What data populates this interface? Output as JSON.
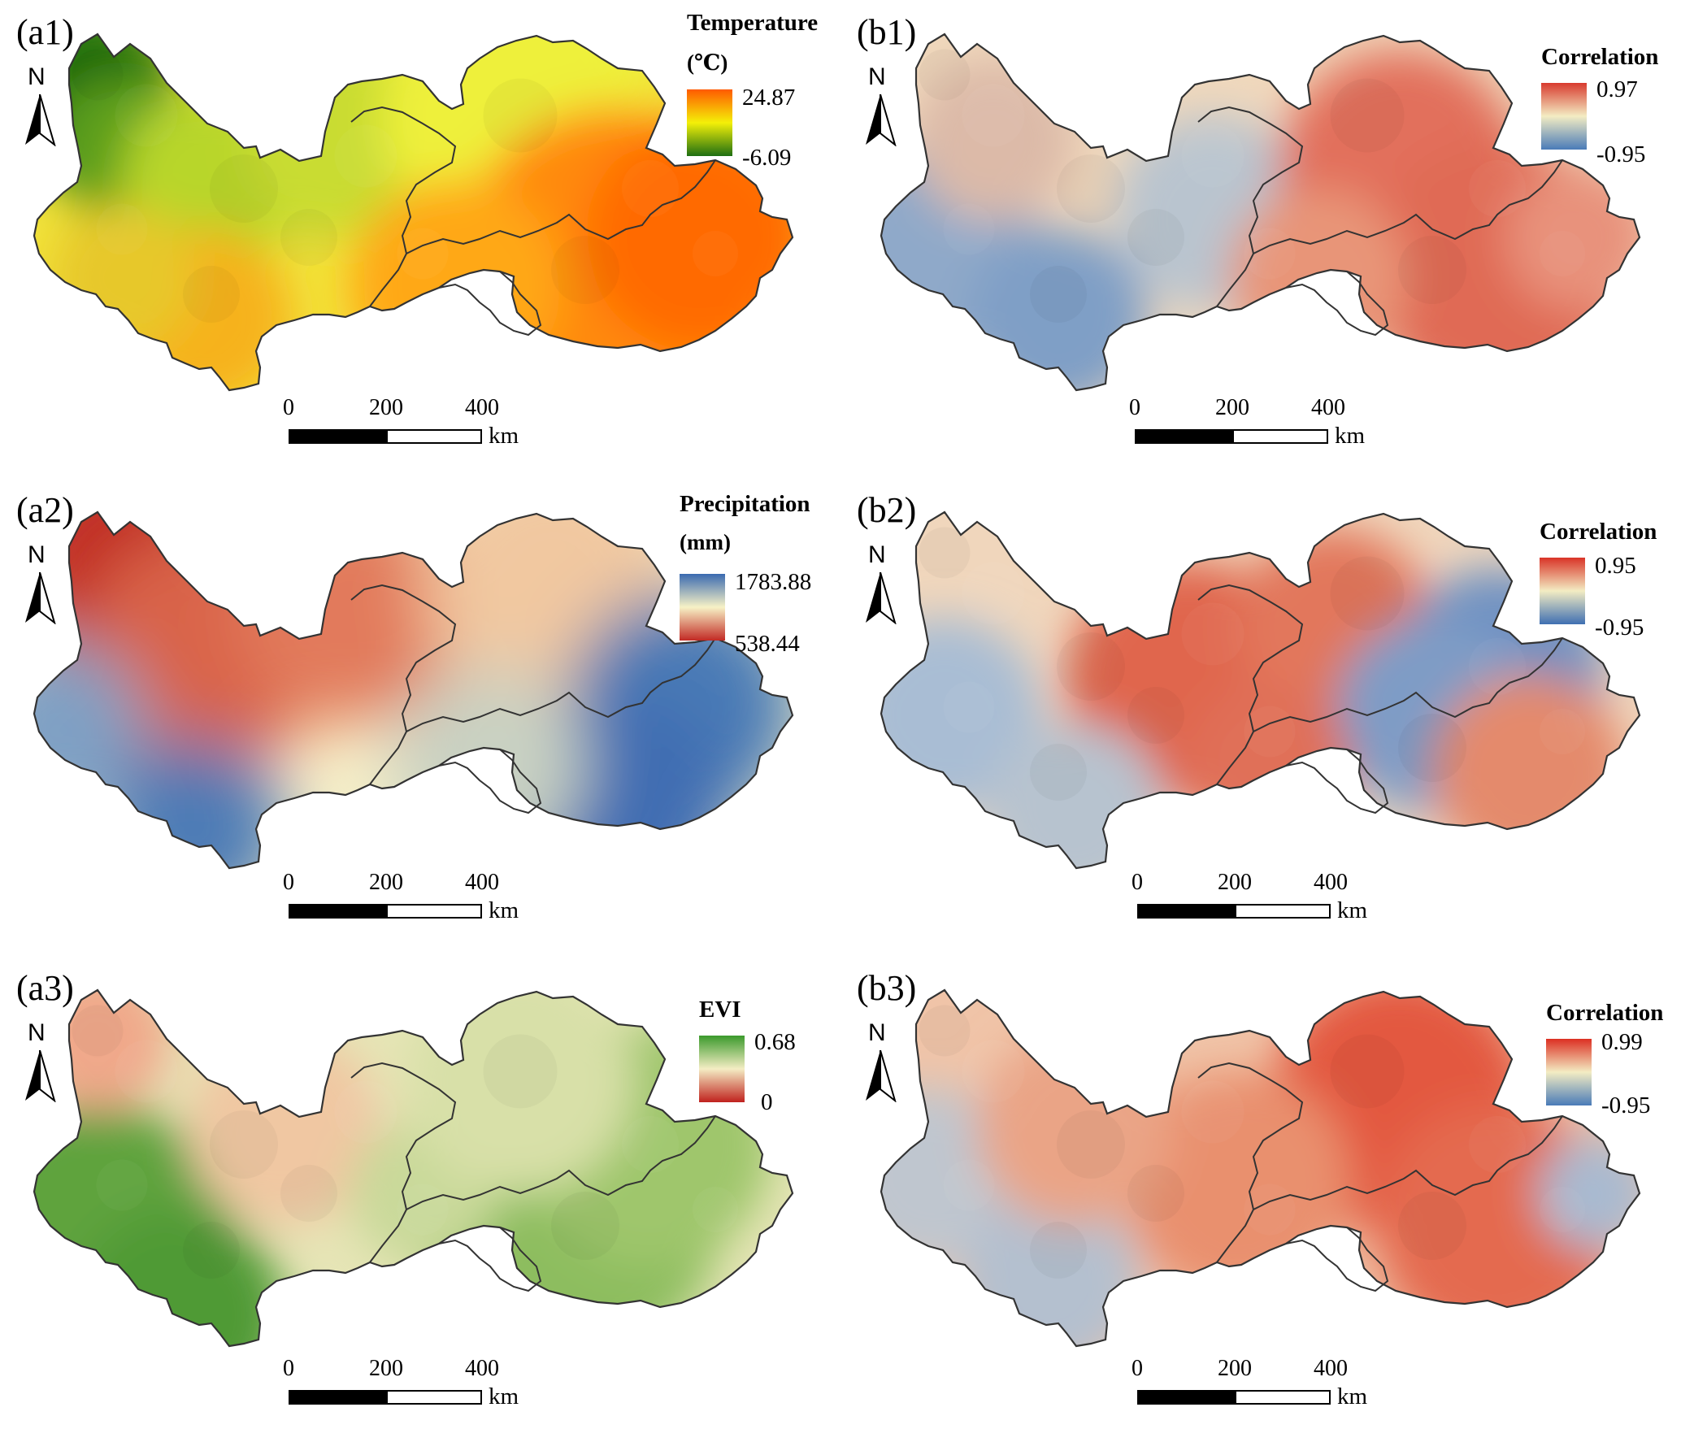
{
  "panels": [
    {
      "id": "a1",
      "label": "(a1)",
      "legend_title": "Temperature",
      "legend_unit": "(℃)",
      "max": "24.87",
      "min": "-6.09",
      "scheme": "temperature",
      "colors": [
        "#1e6e12",
        "#f4f008",
        "#ff5a00"
      ]
    },
    {
      "id": "b1",
      "label": "(b1)",
      "legend_title": "Correlation",
      "legend_unit": "",
      "max": "0.97",
      "min": "-0.95",
      "scheme": "corr1",
      "colors": [
        "#4a7bb8",
        "#f3ecc3",
        "#d83a2e"
      ]
    },
    {
      "id": "a2",
      "label": "(a2)",
      "legend_title": "Precipitation",
      "legend_unit": "(mm)",
      "max": "1783.88",
      "min": "538.44",
      "scheme": "precip",
      "colors": [
        "#c22a24",
        "#f7f2c6",
        "#3a6ab0"
      ]
    },
    {
      "id": "b2",
      "label": "(b2)",
      "legend_title": "Correlation",
      "legend_unit": "",
      "max": "0.95",
      "min": "-0.95",
      "scheme": "corr2",
      "colors": [
        "#3f6fb2",
        "#f3ecc3",
        "#d93327"
      ]
    },
    {
      "id": "a3",
      "label": "(a3)",
      "legend_title": "EVI",
      "legend_unit": "",
      "max": "0.68",
      "min": "0",
      "scheme": "evi",
      "colors": [
        "#c0221e",
        "#f4edc4",
        "#3b9a2c"
      ]
    },
    {
      "id": "b3",
      "label": "(b3)",
      "legend_title": "Correlation",
      "legend_unit": "",
      "max": "0.99",
      "min": "-0.95",
      "scheme": "corr3",
      "colors": [
        "#4a7bb8",
        "#f3ecc3",
        "#dc2f22"
      ]
    }
  ],
  "north_arrow": {
    "label": "N"
  },
  "scale_bar": {
    "ticks": [
      "0",
      "200",
      "400"
    ],
    "unit": "km"
  }
}
